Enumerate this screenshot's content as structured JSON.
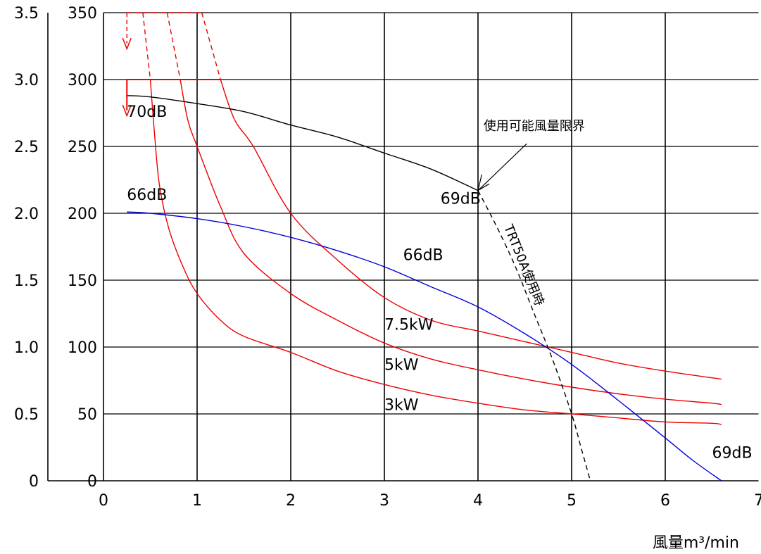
{
  "chart_data": {
    "type": "line",
    "title": "",
    "xlabel": "風量m³/min",
    "ylabel": "",
    "xlim": [
      0,
      7
    ],
    "ylim": [
      0,
      350
    ],
    "x_ticks": [
      0,
      1,
      2,
      3,
      4,
      5,
      6,
      7
    ],
    "y_ticks": [
      0,
      50,
      100,
      150,
      200,
      250,
      300,
      350
    ],
    "y2_ticks": [
      "0",
      "0.5",
      "1.0",
      "1.5",
      "2.0",
      "2.5",
      "3.0",
      "3.5"
    ],
    "grid": true,
    "series": [
      {
        "name": "3kW",
        "color": "#ee0000",
        "style": "solid",
        "points": [
          [
            0.5,
            300
          ],
          [
            0.55,
            255
          ],
          [
            0.6,
            220
          ],
          [
            0.7,
            188
          ],
          [
            0.85,
            160
          ],
          [
            1.0,
            140
          ],
          [
            1.25,
            120
          ],
          [
            1.5,
            108
          ],
          [
            2.0,
            96
          ],
          [
            2.5,
            82
          ],
          [
            3.0,
            72
          ],
          [
            3.5,
            64
          ],
          [
            4.0,
            58
          ],
          [
            4.5,
            53
          ],
          [
            5.0,
            50
          ],
          [
            5.5,
            47
          ],
          [
            6.0,
            44
          ],
          [
            6.5,
            43
          ],
          [
            6.6,
            42
          ]
        ]
      },
      {
        "name": "3kW",
        "color": "#ee0000",
        "style": "dashed",
        "points": [
          [
            0.42,
            350
          ],
          [
            0.5,
            300
          ]
        ]
      },
      {
        "name": "5kW",
        "color": "#ee0000",
        "style": "solid",
        "points": [
          [
            0.82,
            300
          ],
          [
            0.9,
            270
          ],
          [
            1.0,
            250
          ],
          [
            1.25,
            205
          ],
          [
            1.5,
            170
          ],
          [
            2.0,
            140
          ],
          [
            2.5,
            120
          ],
          [
            3.0,
            103
          ],
          [
            3.5,
            91
          ],
          [
            4.0,
            83
          ],
          [
            4.5,
            76
          ],
          [
            5.0,
            70
          ],
          [
            5.5,
            65
          ],
          [
            6.0,
            61
          ],
          [
            6.5,
            58
          ],
          [
            6.6,
            57
          ]
        ]
      },
      {
        "name": "5kW",
        "color": "#ee0000",
        "style": "dashed",
        "points": [
          [
            0.68,
            350
          ],
          [
            0.82,
            300
          ]
        ]
      },
      {
        "name": "7.5kW",
        "color": "#ee0000",
        "style": "solid",
        "points": [
          [
            1.25,
            300
          ],
          [
            1.4,
            270
          ],
          [
            1.6,
            250
          ],
          [
            2.0,
            200
          ],
          [
            2.5,
            165
          ],
          [
            3.0,
            137
          ],
          [
            3.5,
            120
          ],
          [
            4.0,
            112
          ],
          [
            4.5,
            104
          ],
          [
            5.0,
            96
          ],
          [
            5.5,
            88
          ],
          [
            6.0,
            82
          ],
          [
            6.5,
            77
          ],
          [
            6.6,
            76
          ]
        ]
      },
      {
        "name": "7.5kW",
        "color": "#ee0000",
        "style": "dashed",
        "points": [
          [
            1.05,
            350
          ],
          [
            1.25,
            300
          ]
        ]
      },
      {
        "name": "70dB",
        "color": "#000000",
        "style": "solid",
        "points": [
          [
            0.25,
            288
          ],
          [
            0.5,
            287
          ],
          [
            1.0,
            282
          ],
          [
            1.5,
            276
          ],
          [
            2.0,
            266
          ],
          [
            2.5,
            257
          ],
          [
            3.0,
            245
          ],
          [
            3.5,
            233
          ],
          [
            4.0,
            217
          ]
        ]
      },
      {
        "name": "66dB",
        "color": "#0000dd",
        "style": "solid",
        "points": [
          [
            0.25,
            201
          ],
          [
            0.5,
            200
          ],
          [
            1.0,
            196
          ],
          [
            1.5,
            190
          ],
          [
            2.0,
            182
          ],
          [
            2.5,
            172
          ],
          [
            3.0,
            160
          ],
          [
            3.5,
            145
          ],
          [
            4.0,
            130
          ],
          [
            4.5,
            110
          ],
          [
            5.0,
            87
          ],
          [
            5.5,
            60
          ],
          [
            6.0,
            32
          ],
          [
            6.3,
            15
          ],
          [
            6.6,
            0
          ]
        ]
      },
      {
        "name": "TRT50A使用時",
        "color": "#000000",
        "style": "dashed",
        "points": [
          [
            4.0,
            217
          ],
          [
            4.2,
            190
          ],
          [
            4.4,
            160
          ],
          [
            4.6,
            125
          ],
          [
            4.8,
            90
          ],
          [
            5.0,
            50
          ],
          [
            5.1,
            25
          ],
          [
            5.2,
            0
          ]
        ]
      }
    ],
    "annotations": [
      {
        "text": "70dB",
        "x": 0.25,
        "y": 272
      },
      {
        "text": "66dB",
        "x": 0.25,
        "y": 210
      },
      {
        "text": "69dB",
        "x": 3.6,
        "y": 207
      },
      {
        "text": "66dB",
        "x": 3.2,
        "y": 165
      },
      {
        "text": "7.5kW",
        "x": 3.0,
        "y": 113
      },
      {
        "text": "5kW",
        "x": 3.0,
        "y": 83
      },
      {
        "text": "3kW",
        "x": 3.0,
        "y": 53
      },
      {
        "text": "69dB",
        "x": 6.5,
        "y": 17
      },
      {
        "text": "使用可能風量限界",
        "x": 4.6,
        "y": 262
      },
      {
        "text": "TRT50A使用時",
        "x": 4.45,
        "y": 160
      }
    ]
  }
}
